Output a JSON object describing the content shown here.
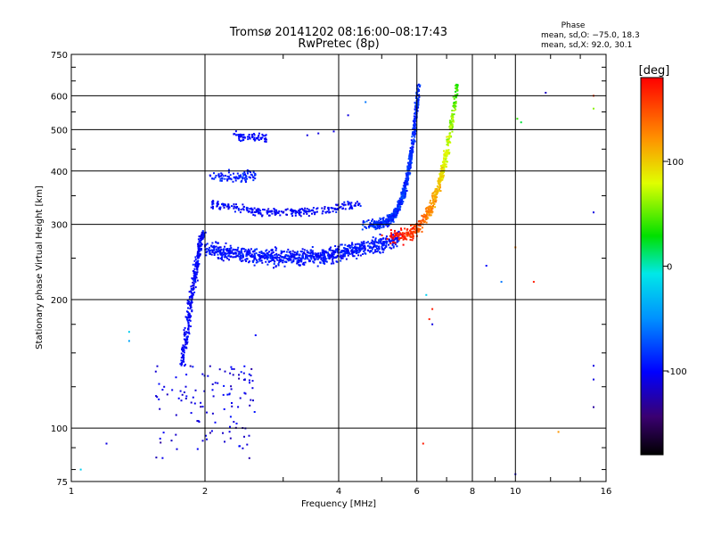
{
  "chart_data": {
    "type": "scatter",
    "title": "Tromsø 20141202 08:16:00–08:17:43",
    "subtitle": "RwPretec (8p)",
    "phase_info": {
      "heading": "Phase",
      "line_o": "mean, sd,O: −75.0, 18.3",
      "line_x": "mean, sd,X:  92.0, 30.1"
    },
    "xlabel": "Frequency [MHz]",
    "ylabel": "Stationary phase Virtual Height [km]",
    "x_scale": "log",
    "y_scale": "log",
    "xlim": [
      1,
      16
    ],
    "ylim": [
      75,
      750
    ],
    "x_ticks": [
      1,
      2,
      4,
      6,
      8,
      10,
      16
    ],
    "x_tick_labels": [
      "1",
      "2",
      "4",
      "6",
      "8",
      "10",
      "16"
    ],
    "y_ticks": [
      75,
      100,
      200,
      300,
      400,
      500,
      600,
      750
    ],
    "y_tick_labels": [
      "75",
      "100",
      "200",
      "300",
      "400",
      "500",
      "600",
      "750"
    ],
    "grid": true,
    "colorbar": {
      "label": "[deg]",
      "range": [
        -180,
        180
      ],
      "ticks": [
        100,
        0,
        -100
      ],
      "tick_labels": [
        "100",
        "0",
        "-100"
      ],
      "colormap": "rainbow"
    },
    "point_clusters": [
      {
        "name": "E-region traces",
        "x_range": [
          1.55,
          2.6
        ],
        "height_range": [
          85,
          145
        ],
        "phase": -110,
        "note": "sparse blue points"
      },
      {
        "name": "Low-frequency rise",
        "x_range": [
          1.8,
          2.0
        ],
        "height_range": [
          140,
          290
        ],
        "phase": -95,
        "note": "vertical cusp near 2 MHz"
      },
      {
        "name": "F1 layer trace",
        "x_range": [
          2.0,
          5.5
        ],
        "height_range": [
          245,
          290
        ],
        "phase": -90,
        "note": "main blue band"
      },
      {
        "name": "Second-hop trace",
        "x_range": [
          2.0,
          4.5
        ],
        "height_range": [
          310,
          420
        ],
        "phase": -100
      },
      {
        "name": "Upper trace",
        "x_range": [
          2.3,
          2.7
        ],
        "height_range": [
          450,
          510
        ],
        "phase": -100
      },
      {
        "name": "O-mode critical rise",
        "x_range": [
          4.5,
          6.1
        ],
        "height_range": [
          300,
          640
        ],
        "phase": -75,
        "note": "steep blue trace to ~6 MHz"
      },
      {
        "name": "X-mode trace",
        "x_range": [
          5.0,
          7.5
        ],
        "height_range": [
          280,
          640
        ],
        "phase": 92,
        "note": "red to yellow-green points"
      },
      {
        "name": "Scattered points",
        "x_range": [
          1.0,
          16
        ],
        "height_range": [
          78,
          620
        ],
        "phase": -110
      }
    ]
  }
}
